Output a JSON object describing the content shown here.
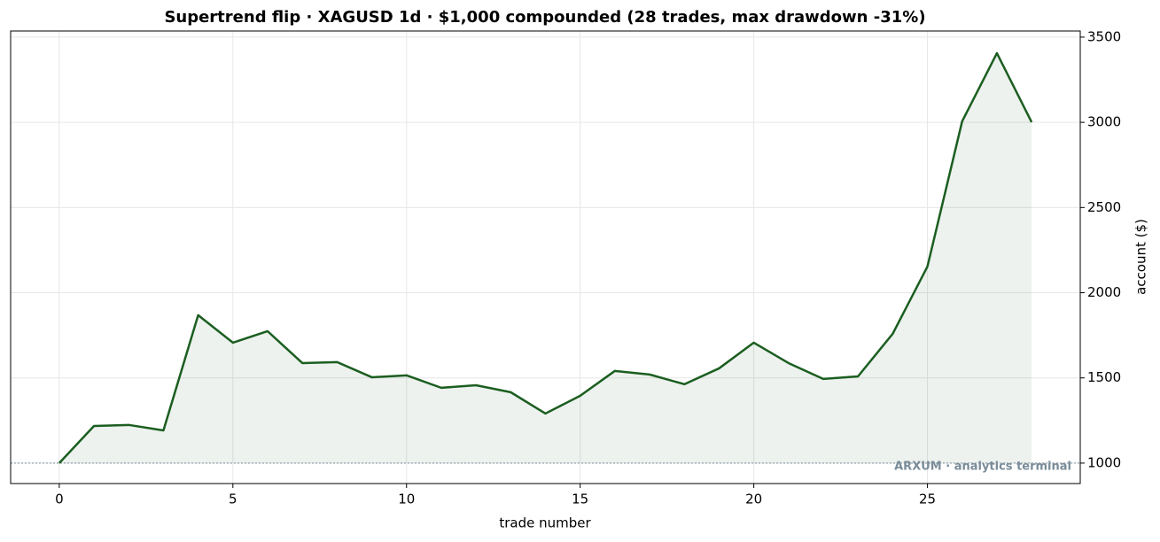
{
  "chart_data": {
    "type": "line",
    "title": "Supertrend flip · XAGUSD 1d · $1,000 compounded (28 trades, max drawdown -31%)",
    "x_label": "trade number",
    "y_label": "account ($)",
    "watermark": "ARXUM · analytics terminal",
    "x": [
      0,
      1,
      2,
      3,
      4,
      5,
      6,
      7,
      8,
      9,
      10,
      11,
      12,
      13,
      14,
      15,
      16,
      17,
      18,
      19,
      20,
      21,
      22,
      23,
      24,
      25,
      26,
      27,
      28
    ],
    "series": [
      {
        "name": "account",
        "color": "#1b5e20",
        "values": [
          1000,
          1218,
          1224,
          1192,
          1868,
          1707,
          1774,
          1587,
          1593,
          1504,
          1515,
          1442,
          1457,
          1416,
          1291,
          1395,
          1541,
          1520,
          1463,
          1556,
          1707,
          1587,
          1494,
          1509,
          1759,
          2154,
          3006,
          3406,
          3001
        ]
      }
    ],
    "baseline": 1000,
    "xlim": [
      -1.4,
      29.4
    ],
    "xticks": [
      0,
      5,
      10,
      15,
      20,
      25
    ],
    "ylim": [
      880,
      3536
    ],
    "yticks": [
      1000,
      1500,
      2000,
      2500,
      3000,
      3500
    ],
    "y_axis_side": "right",
    "grid": true
  }
}
